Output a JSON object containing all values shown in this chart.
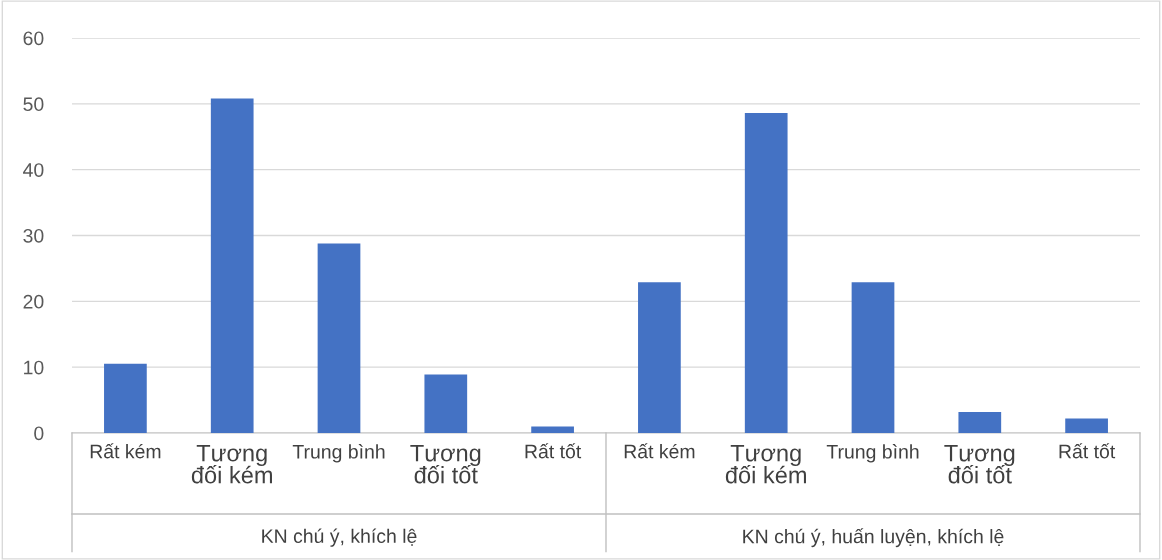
{
  "chart_data": {
    "type": "bar",
    "categories": [
      "Rất kém",
      "Tương\nđối kém",
      "Trung bình",
      "Tương\nđối tốt",
      "Rất tốt",
      "Rất kém",
      "Tương\nđối kém",
      "Trung bình",
      "Tương\nđối tốt",
      "Rất tốt"
    ],
    "values": [
      10.5,
      50.8,
      28.8,
      8.9,
      1.0,
      22.9,
      48.6,
      22.9,
      3.2,
      2.2
    ],
    "color": "#4472c4",
    "ylim": [
      0,
      60
    ],
    "yticks": [
      0,
      10,
      20,
      30,
      40,
      50,
      60
    ],
    "grid": "y",
    "annotations": [
      "KN chú ý, khích lệ",
      "KN chú ý, huấn luyện, khích lệ"
    ]
  }
}
